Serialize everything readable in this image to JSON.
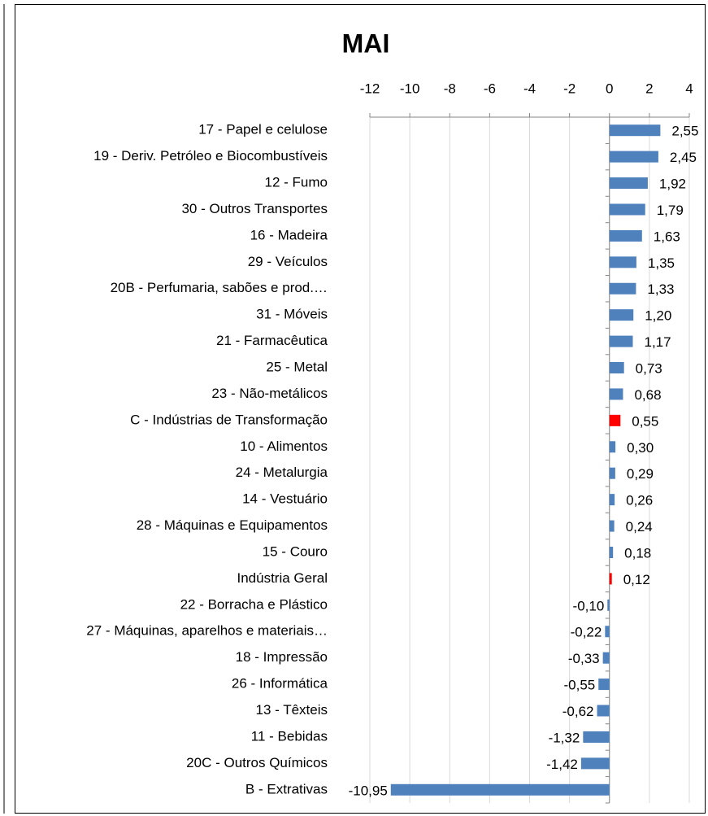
{
  "chart_data": {
    "type": "hbar",
    "title": "MAI",
    "categories": [
      "17 - Papel e celulose",
      "19 - Deriv. Petróleo e Biocombustíveis",
      "12 - Fumo",
      "30 - Outros Transportes",
      "16 - Madeira",
      "29 - Veículos",
      "20B - Perfumaria, sabões e prod.…",
      "31 - Móveis",
      "21 - Farmacêutica",
      "25 - Metal",
      "23 - Não-metálicos",
      "C - Indústrias de Transformação",
      "10 - Alimentos",
      "24 - Metalurgia",
      "14 - Vestuário",
      "28 - Máquinas e Equipamentos",
      "15 - Couro",
      "Indústria Geral",
      "22 - Borracha e Plástico",
      "27 - Máquinas, aparelhos e materiais…",
      "18 - Impressão",
      "26 - Informática",
      "13 - Têxteis",
      "11 - Bebidas",
      "20C - Outros Químicos",
      "B - Extrativas"
    ],
    "values": [
      2.55,
      2.45,
      1.92,
      1.79,
      1.63,
      1.35,
      1.33,
      1.2,
      1.17,
      0.73,
      0.68,
      0.55,
      0.3,
      0.29,
      0.26,
      0.24,
      0.18,
      0.12,
      -0.1,
      -0.22,
      -0.33,
      -0.55,
      -0.62,
      -1.32,
      -1.42,
      -10.95
    ],
    "value_labels": [
      "2,55",
      "2,45",
      "1,92",
      "1,79",
      "1,63",
      "1,35",
      "1,33",
      "1,20",
      "1,17",
      "0,73",
      "0,68",
      "0,55",
      "0,30",
      "0,29",
      "0,26",
      "0,24",
      "0,18",
      "0,12",
      "-0,10",
      "-0,22",
      "-0,33",
      "-0,55",
      "-0,62",
      "-1,32",
      "-1,42",
      "-10,95"
    ],
    "colors": [
      "#4f81bd",
      "#4f81bd",
      "#4f81bd",
      "#4f81bd",
      "#4f81bd",
      "#4f81bd",
      "#4f81bd",
      "#4f81bd",
      "#4f81bd",
      "#4f81bd",
      "#4f81bd",
      "#ff0000",
      "#4f81bd",
      "#4f81bd",
      "#4f81bd",
      "#4f81bd",
      "#4f81bd",
      "#ff0000",
      "#4f81bd",
      "#4f81bd",
      "#4f81bd",
      "#4f81bd",
      "#4f81bd",
      "#4f81bd",
      "#4f81bd",
      "#4f81bd"
    ],
    "xlim": [
      -12,
      4
    ],
    "xticks": [
      -12,
      -10,
      -8,
      -6,
      -4,
      -2,
      0,
      2,
      4
    ],
    "grid": true
  }
}
